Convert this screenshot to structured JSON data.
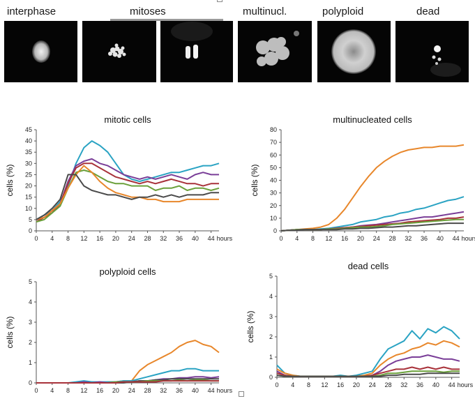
{
  "categories": {
    "interphase": "interphase",
    "mitoses": "mitoses",
    "multinucl": "multinucl.",
    "polyploid": "polyploid",
    "dead": "dead"
  },
  "colors": {
    "teal": "#2aa3c3",
    "orange": "#e8872b",
    "purple": "#7a3e98",
    "crimson": "#a8323a",
    "green": "#6aa03a",
    "gray": "#4a4a4a"
  },
  "chart_data": [
    {
      "type": "line",
      "title": "mitotic cells",
      "ylabel": "cells (%)",
      "xlabel": "",
      "x_unit_label": "hours",
      "ylim": [
        0,
        45
      ],
      "yticks": [
        0,
        5,
        10,
        15,
        20,
        25,
        30,
        35,
        40,
        45
      ],
      "xlim": [
        0,
        46
      ],
      "xticks": [
        0,
        4,
        8,
        12,
        16,
        20,
        24,
        28,
        32,
        36,
        40,
        44
      ],
      "x": [
        0,
        2,
        4,
        6,
        8,
        10,
        12,
        14,
        16,
        18,
        20,
        22,
        24,
        26,
        28,
        30,
        32,
        34,
        36,
        38,
        40,
        42,
        44,
        46
      ],
      "series": [
        {
          "color": "#2aa3c3",
          "values": [
            5,
            7,
            9,
            13,
            20,
            30,
            37,
            40,
            38,
            35,
            30,
            25,
            23,
            22,
            23,
            24,
            25,
            26,
            26,
            27,
            28,
            29,
            29,
            30
          ]
        },
        {
          "color": "#7a3e98",
          "values": [
            5,
            6,
            9,
            12,
            22,
            29,
            31,
            32,
            30,
            29,
            27,
            25,
            24,
            23,
            24,
            23,
            24,
            25,
            24,
            23,
            25,
            26,
            25,
            25
          ]
        },
        {
          "color": "#a8323a",
          "values": [
            4,
            6,
            8,
            12,
            21,
            28,
            30,
            30,
            28,
            26,
            24,
            23,
            22,
            21,
            22,
            21,
            22,
            23,
            22,
            21,
            21,
            20,
            21,
            21
          ]
        },
        {
          "color": "#6aa03a",
          "values": [
            4,
            5,
            8,
            11,
            19,
            26,
            27,
            26,
            24,
            22,
            21,
            21,
            20,
            20,
            20,
            18,
            19,
            19,
            20,
            18,
            19,
            19,
            18,
            19
          ]
        },
        {
          "color": "#e8872b",
          "values": [
            5,
            6,
            9,
            12,
            19,
            25,
            29,
            26,
            22,
            19,
            17,
            16,
            15,
            15,
            14,
            14,
            13,
            13,
            13,
            14,
            14,
            14,
            14,
            14
          ]
        },
        {
          "color": "#4a4a4a",
          "values": [
            5,
            7,
            10,
            14,
            25,
            25,
            20,
            18,
            17,
            16,
            16,
            15,
            14,
            15,
            15,
            16,
            15,
            16,
            15,
            16,
            16,
            16,
            17,
            17
          ]
        }
      ]
    },
    {
      "type": "line",
      "title": "multinucleated cells",
      "ylabel": "cells (%)",
      "xlabel": "",
      "x_unit_label": "hours",
      "ylim": [
        0,
        80
      ],
      "yticks": [
        0,
        10,
        20,
        30,
        40,
        50,
        60,
        70,
        80
      ],
      "xlim": [
        0,
        46
      ],
      "xticks": [
        0,
        4,
        8,
        12,
        16,
        20,
        24,
        28,
        32,
        36,
        40,
        44
      ],
      "x": [
        0,
        2,
        4,
        6,
        8,
        10,
        12,
        14,
        16,
        18,
        20,
        22,
        24,
        26,
        28,
        30,
        32,
        34,
        36,
        38,
        40,
        42,
        44,
        46
      ],
      "series": [
        {
          "color": "#e8872b",
          "values": [
            0,
            0.5,
            1,
            1.5,
            2,
            3,
            5,
            10,
            17,
            26,
            35,
            43,
            50,
            55,
            59,
            62,
            64,
            65,
            66,
            66,
            67,
            67,
            67,
            68
          ]
        },
        {
          "color": "#2aa3c3",
          "values": [
            0,
            0.5,
            1,
            1,
            1,
            1.5,
            2,
            3,
            4,
            5,
            7,
            8,
            9,
            11,
            12,
            14,
            15,
            17,
            18,
            20,
            22,
            24,
            25,
            27
          ]
        },
        {
          "color": "#7a3e98",
          "values": [
            0,
            0.5,
            1,
            1,
            1,
            1,
            1.5,
            2,
            2.5,
            3,
            4,
            4.5,
            5,
            6,
            7,
            8,
            9,
            10,
            11,
            11,
            12,
            13,
            14,
            15
          ]
        },
        {
          "color": "#a8323a",
          "values": [
            0,
            0.5,
            1,
            1,
            1,
            1,
            1.5,
            2,
            2.5,
            3,
            3.5,
            4,
            4.5,
            5,
            5.5,
            6,
            7,
            7.5,
            8,
            8.5,
            9,
            10,
            10,
            11
          ]
        },
        {
          "color": "#6aa03a",
          "values": [
            0,
            0.5,
            1,
            1,
            1,
            1,
            1.5,
            1.5,
            2,
            2.5,
            3,
            3,
            3.5,
            4,
            5,
            5.5,
            6,
            6.5,
            7,
            7.5,
            8,
            8.5,
            9,
            9
          ]
        },
        {
          "color": "#4a4a4a",
          "values": [
            0,
            0.5,
            0.5,
            1,
            1,
            1,
            1,
            1,
            1.5,
            1.5,
            2,
            2,
            2.5,
            3,
            3,
            3.5,
            4,
            4,
            4.5,
            5,
            5.5,
            6,
            6,
            6
          ]
        }
      ]
    },
    {
      "type": "line",
      "title": "polyploid cells",
      "ylabel": "cells (%)",
      "xlabel": "",
      "x_unit_label": "hours",
      "ylim": [
        0,
        5
      ],
      "yticks": [
        0,
        1,
        2,
        3,
        4,
        5
      ],
      "xlim": [
        0,
        46
      ],
      "xticks": [
        0,
        4,
        8,
        12,
        16,
        20,
        24,
        28,
        32,
        36,
        40,
        44
      ],
      "x": [
        0,
        2,
        4,
        6,
        8,
        10,
        12,
        14,
        16,
        18,
        20,
        22,
        24,
        26,
        28,
        30,
        32,
        34,
        36,
        38,
        40,
        42,
        44,
        46
      ],
      "series": [
        {
          "color": "#e8872b",
          "values": [
            0,
            0,
            0,
            0,
            0,
            0,
            0,
            0.05,
            0,
            0.05,
            0.05,
            0.1,
            0.1,
            0.6,
            0.9,
            1.1,
            1.3,
            1.5,
            1.8,
            2.0,
            2.1,
            1.9,
            1.8,
            1.5
          ]
        },
        {
          "color": "#2aa3c3",
          "values": [
            0,
            0,
            0,
            0,
            0,
            0.05,
            0.1,
            0.05,
            0.05,
            0.05,
            0.05,
            0.1,
            0.1,
            0.2,
            0.3,
            0.4,
            0.5,
            0.6,
            0.6,
            0.7,
            0.7,
            0.6,
            0.6,
            0.6
          ]
        },
        {
          "color": "#7a3e98",
          "values": [
            0,
            0,
            0,
            0,
            0,
            0,
            0.05,
            0,
            0.05,
            0,
            0.05,
            0.05,
            0.05,
            0.1,
            0.1,
            0.15,
            0.2,
            0.2,
            0.25,
            0.25,
            0.3,
            0.3,
            0.25,
            0.3
          ]
        },
        {
          "color": "#4a4a4a",
          "values": [
            0,
            0,
            0,
            0,
            0,
            0,
            0,
            0,
            0,
            0,
            0,
            0,
            0.05,
            0.1,
            0.1,
            0.15,
            0.15,
            0.2,
            0.2,
            0.2,
            0.2,
            0.2,
            0.2,
            0.2
          ]
        },
        {
          "color": "#6aa03a",
          "values": [
            0,
            0,
            0,
            0,
            0,
            0,
            0,
            0,
            0,
            0,
            0.05,
            0.05,
            0.05,
            0.05,
            0.1,
            0.1,
            0.1,
            0.1,
            0.15,
            0.1,
            0.15,
            0.15,
            0.1,
            0.1
          ]
        },
        {
          "color": "#a8323a",
          "values": [
            0,
            0,
            0,
            0,
            0,
            0,
            0,
            0,
            0,
            0,
            0,
            0.05,
            0.05,
            0.05,
            0.05,
            0.05,
            0.1,
            0.1,
            0.1,
            0.1,
            0.1,
            0.1,
            0.1,
            0.1
          ]
        }
      ]
    },
    {
      "type": "line",
      "title": "dead cells",
      "ylabel": "cells (%)",
      "xlabel": "",
      "x_unit_label": "hours",
      "ylim": [
        0,
        5
      ],
      "yticks": [
        0,
        1,
        2,
        3,
        4,
        5
      ],
      "xlim": [
        0,
        46
      ],
      "xticks": [
        0,
        4,
        8,
        12,
        16,
        20,
        24,
        28,
        32,
        36,
        40,
        44
      ],
      "x": [
        0,
        2,
        4,
        6,
        8,
        10,
        12,
        14,
        16,
        18,
        20,
        22,
        24,
        26,
        28,
        30,
        32,
        34,
        36,
        38,
        40,
        42,
        44,
        46
      ],
      "series": [
        {
          "color": "#2aa3c3",
          "values": [
            0.6,
            0.2,
            0.1,
            0.05,
            0.05,
            0.05,
            0.05,
            0.05,
            0.1,
            0.05,
            0.1,
            0.2,
            0.3,
            0.9,
            1.4,
            1.6,
            1.8,
            2.3,
            1.9,
            2.4,
            2.2,
            2.5,
            2.3,
            1.9
          ]
        },
        {
          "color": "#e8872b",
          "values": [
            0.4,
            0.2,
            0.1,
            0.05,
            0.05,
            0.05,
            0.05,
            0.05,
            0.05,
            0.05,
            0.05,
            0.1,
            0.2,
            0.6,
            0.9,
            1.1,
            1.2,
            1.4,
            1.5,
            1.7,
            1.6,
            1.8,
            1.7,
            1.5
          ]
        },
        {
          "color": "#7a3e98",
          "values": [
            0.3,
            0.1,
            0.05,
            0.05,
            0.05,
            0.05,
            0.05,
            0.05,
            0.05,
            0.05,
            0.05,
            0.05,
            0.1,
            0.3,
            0.6,
            0.8,
            0.9,
            1.0,
            1.0,
            1.1,
            1.0,
            0.9,
            0.9,
            0.8
          ]
        },
        {
          "color": "#a8323a",
          "values": [
            0.2,
            0.1,
            0.05,
            0.05,
            0.05,
            0.05,
            0.05,
            0.05,
            0.05,
            0.05,
            0.05,
            0.05,
            0.1,
            0.2,
            0.3,
            0.4,
            0.4,
            0.5,
            0.4,
            0.5,
            0.4,
            0.5,
            0.4,
            0.4
          ]
        },
        {
          "color": "#6aa03a",
          "values": [
            0.1,
            0.05,
            0.05,
            0.05,
            0.05,
            0.05,
            0.05,
            0.05,
            0.05,
            0.05,
            0.05,
            0.05,
            0.05,
            0.1,
            0.2,
            0.2,
            0.25,
            0.3,
            0.3,
            0.3,
            0.3,
            0.25,
            0.3,
            0.3
          ]
        },
        {
          "color": "#4a4a4a",
          "values": [
            0.1,
            0.05,
            0.05,
            0.05,
            0.05,
            0.05,
            0.05,
            0.05,
            0.05,
            0.05,
            0.05,
            0.05,
            0.05,
            0.05,
            0.1,
            0.1,
            0.15,
            0.15,
            0.15,
            0.2,
            0.2,
            0.2,
            0.2,
            0.2
          ]
        }
      ]
    }
  ]
}
